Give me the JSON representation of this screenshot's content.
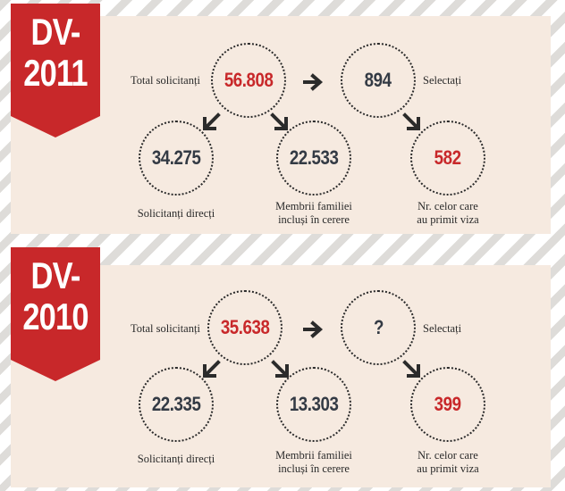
{
  "panels": [
    {
      "ribbon": [
        "DV-",
        "2011"
      ],
      "total_label": "Total solicitanți",
      "total_value": "56.808",
      "selected_value": "894",
      "selected_label": "Selectați",
      "direct_value": "34.275",
      "direct_label": "Solicitanți direcți",
      "family_value": "22.533",
      "family_label": [
        "Membrii familiei",
        "incluși în cerere"
      ],
      "visa_value": "582",
      "visa_label": [
        "Nr. celor care",
        "au primit viza"
      ]
    },
    {
      "ribbon": [
        "DV-",
        "2010"
      ],
      "total_label": "Total solicitanți",
      "total_value": "35.638",
      "selected_value": "?",
      "selected_label": "Selectați",
      "direct_value": "22.335",
      "direct_label": "Solicitanți direcți",
      "family_value": "13.303",
      "family_label": [
        "Membrii familiei",
        "incluși în cerere"
      ],
      "visa_value": "399",
      "visa_label": [
        "Nr. celor care",
        "au primit viza"
      ]
    }
  ],
  "colors": {
    "accent": "#c8282a",
    "panel": "#f6eae0",
    "number": "#333a44"
  },
  "icons": [
    "arrow-right-icon",
    "arrow-down-left-icon",
    "arrow-down-right-icon"
  ]
}
